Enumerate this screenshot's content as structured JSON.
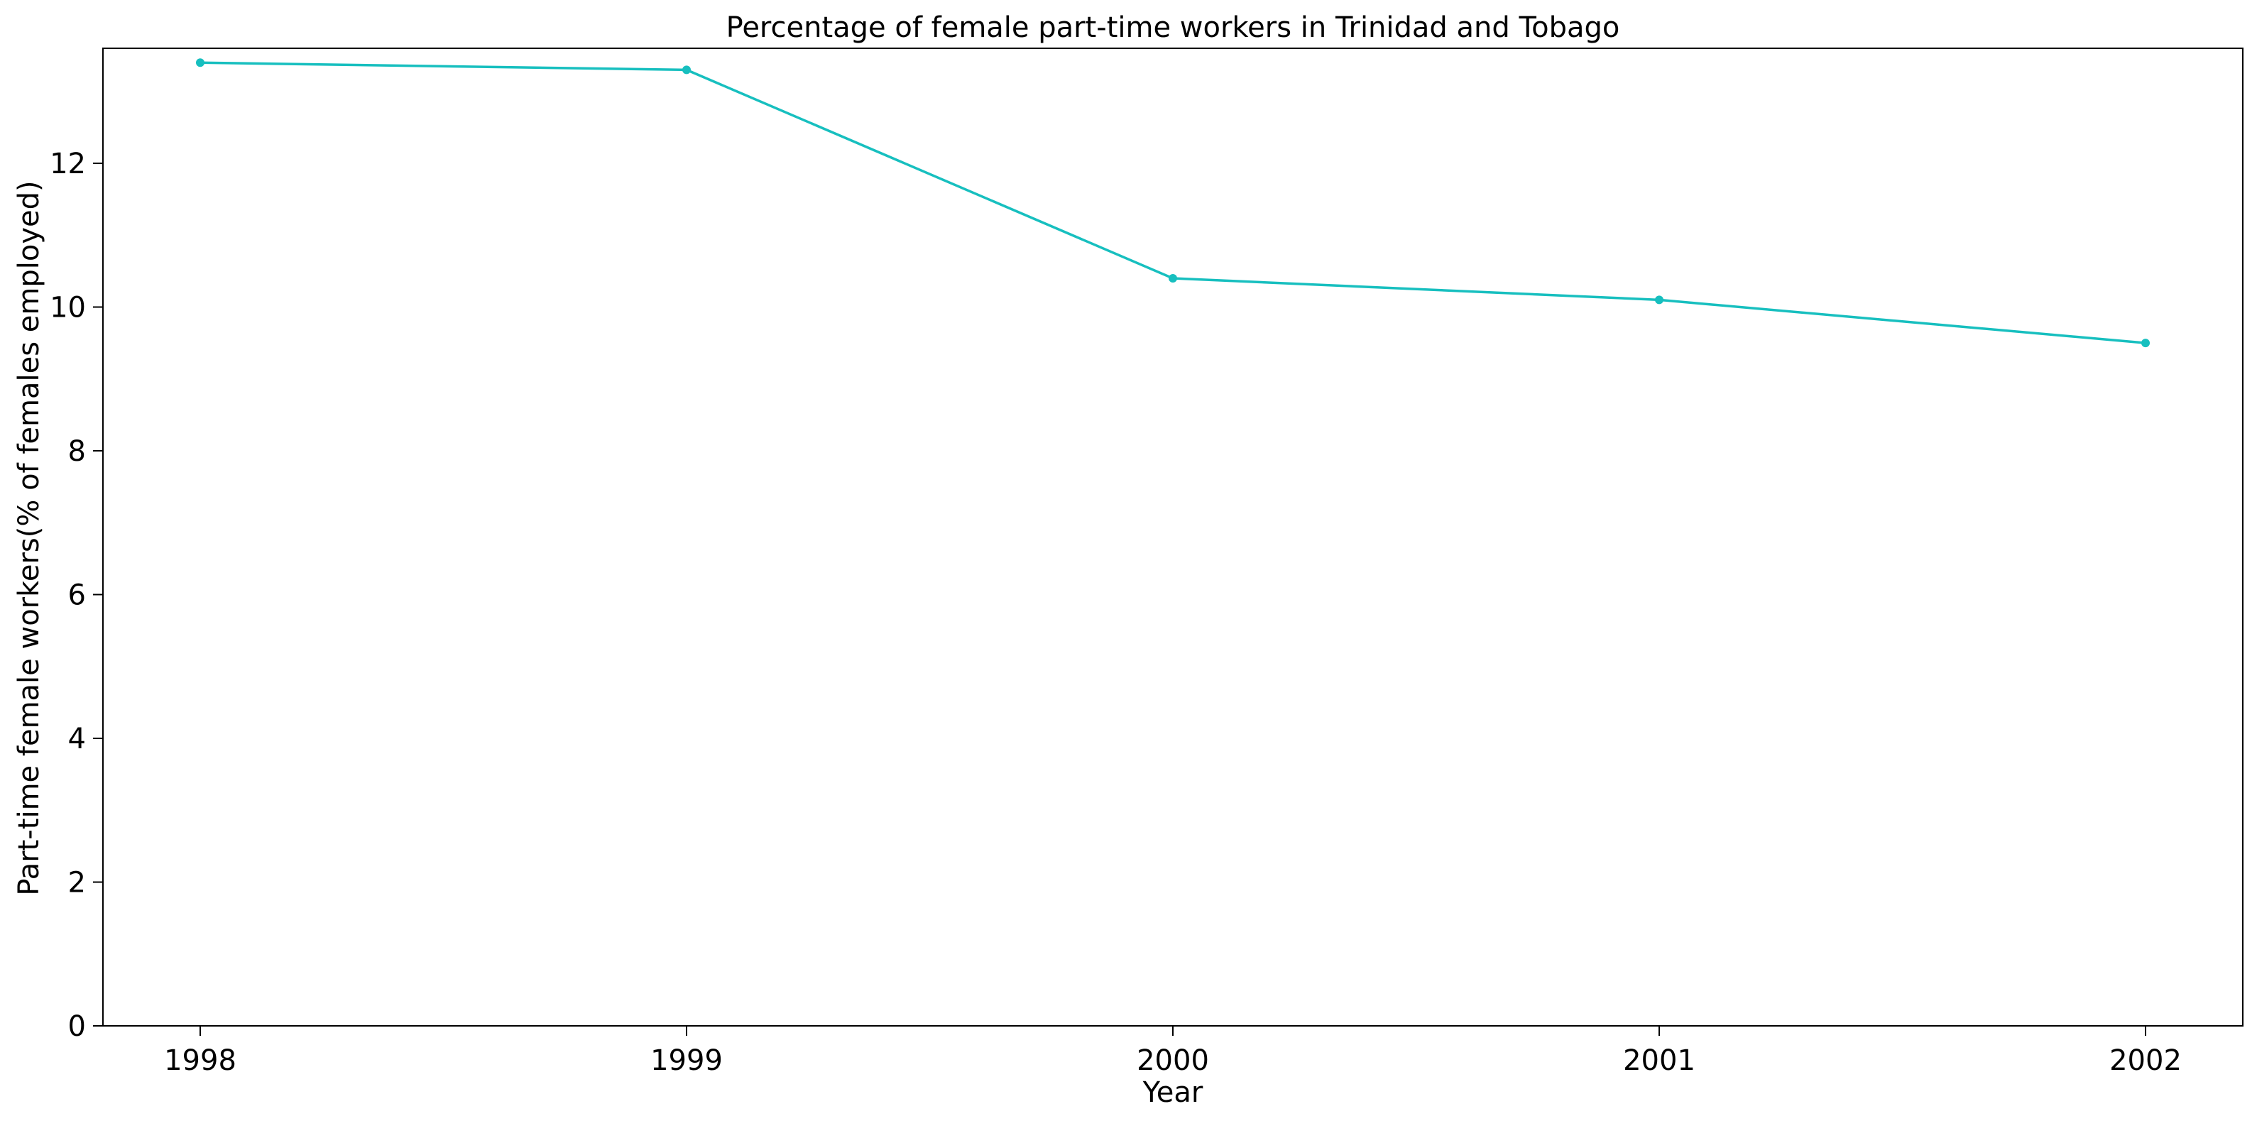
{
  "chart_data": {
    "type": "line",
    "title": "Percentage of female part-time workers in Trinidad and Tobago",
    "xlabel": "Year",
    "ylabel": "Part-time female workers(% of females employed)",
    "x": [
      "1998",
      "1999",
      "2000",
      "2001",
      "2002"
    ],
    "series": [
      {
        "values": [
          13.4,
          13.3,
          10.4,
          10.1,
          9.5
        ],
        "color": "#17bfbf"
      }
    ],
    "ylim": [
      0,
      13.6
    ],
    "yticks": [
      "0",
      "2",
      "4",
      "6",
      "8",
      "10",
      "12"
    ],
    "grid": false,
    "legend": "none"
  }
}
